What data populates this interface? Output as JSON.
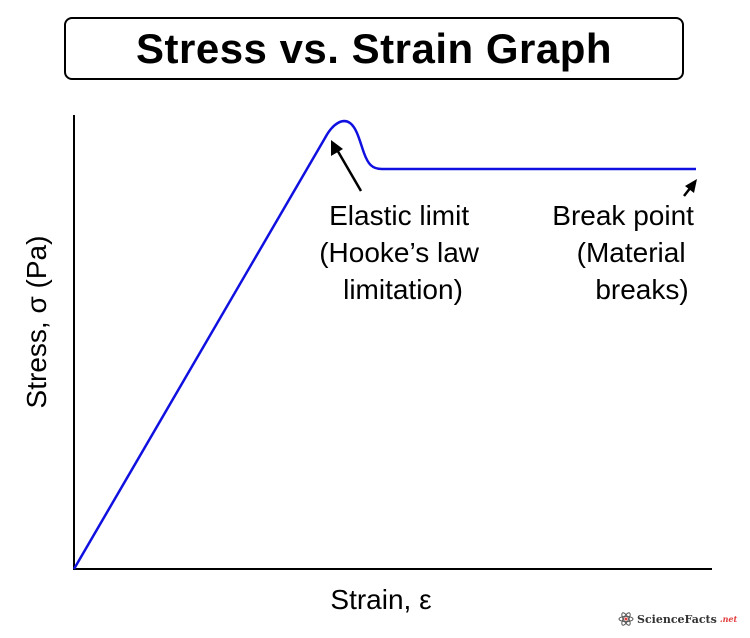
{
  "title": "Stress vs. Strain Graph",
  "axes": {
    "y_label": "Stress, σ (Pa)",
    "x_label": "Strain, ε"
  },
  "annotations": {
    "elastic": [
      "Elastic limit",
      "(Hooke’s law",
      "limitation)"
    ],
    "break": [
      "Break point",
      "(Material",
      "breaks)"
    ]
  },
  "watermark": {
    "name": "ScienceFacts",
    "suffix": ".net"
  },
  "colors": {
    "curve": "#1010e0",
    "axis": "#000000",
    "text": "#000000"
  }
}
